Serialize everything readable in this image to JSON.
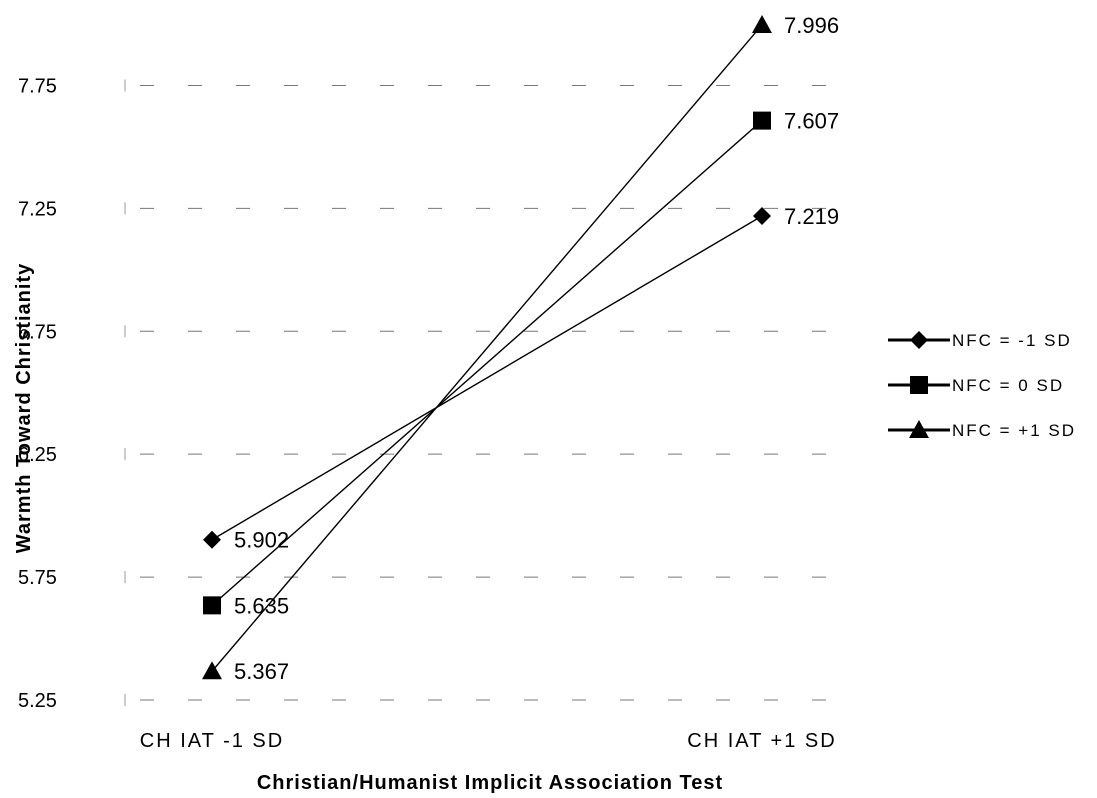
{
  "chart_data": {
    "type": "line",
    "xlabel": "Christian/Humanist Implicit Association Test",
    "ylabel": "Warmth Toward Christianity",
    "categories": [
      "CH IAT -1 SD",
      "CH IAT +1 SD"
    ],
    "ylim": [
      5.25,
      8.0
    ],
    "yticks": [
      "5.25",
      "5.75",
      "6.25",
      "6.75",
      "7.25",
      "7.75"
    ],
    "grid": true,
    "legend_position": "right",
    "series": [
      {
        "name": "NFC  = -1 SD",
        "marker": "diamond",
        "values": [
          5.902,
          7.219
        ],
        "labels": [
          "5.902",
          "7.219"
        ]
      },
      {
        "name": "NFC  = 0 SD",
        "marker": "square",
        "values": [
          5.635,
          7.607
        ],
        "labels": [
          "5.635",
          "7.607"
        ]
      },
      {
        "name": "NFC  = +1 SD",
        "marker": "triangle",
        "values": [
          5.367,
          7.996
        ],
        "labels": [
          "5.367",
          "7.996"
        ]
      }
    ],
    "line_color": "#000000"
  }
}
